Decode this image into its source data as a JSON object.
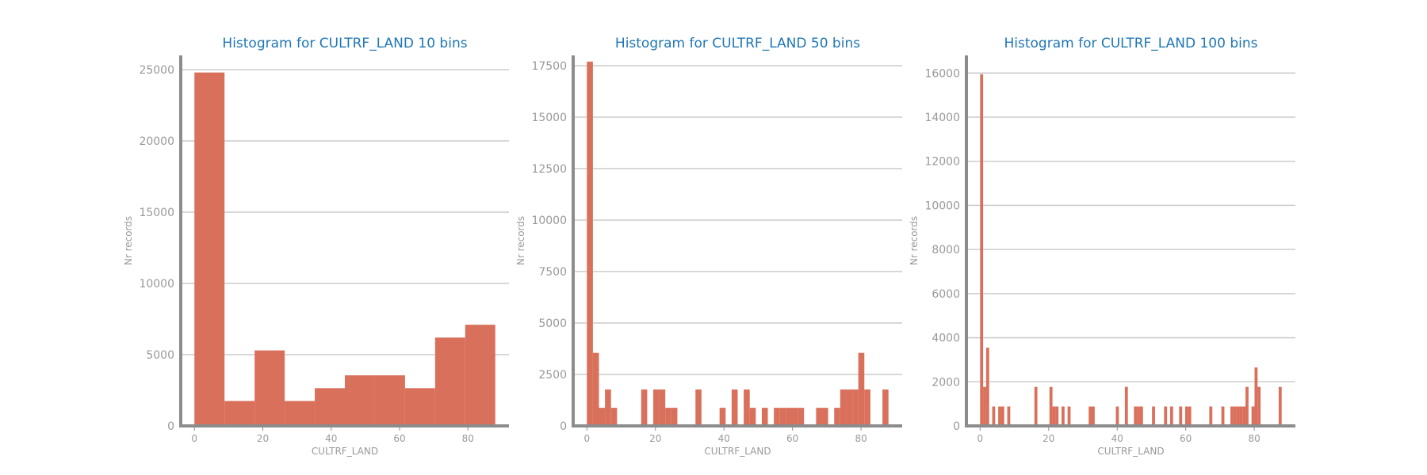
{
  "chart_data": [
    {
      "type": "bar",
      "title": "Histogram for CULTRF_LAND 10 bins",
      "xlabel": "CULTRF_LAND",
      "ylabel": "Nr records",
      "bins": 10,
      "x_range": [
        0,
        88
      ],
      "xlim": [
        -4,
        92
      ],
      "ylim": [
        0,
        26000
      ],
      "xticks": [
        0,
        20,
        40,
        60,
        80
      ],
      "yticks": [
        0,
        5000,
        10000,
        15000,
        20000,
        25000
      ],
      "bar_color": "#d9705c",
      "values": [
        24800,
        1750,
        5300,
        1750,
        2650,
        3550,
        3550,
        2650,
        6200,
        7100
      ]
    },
    {
      "type": "bar",
      "title": "Histogram for CULTRF_LAND 50 bins",
      "xlabel": "CULTRF_LAND",
      "ylabel": "Nr records",
      "bins": 50,
      "x_range": [
        0,
        88
      ],
      "xlim": [
        -4,
        92
      ],
      "ylim": [
        0,
        18000
      ],
      "xticks": [
        0,
        20,
        40,
        60,
        80
      ],
      "yticks": [
        0,
        2500,
        5000,
        7500,
        10000,
        12500,
        15000,
        17500
      ],
      "bar_color": "#d9705c",
      "values": [
        17700,
        3550,
        880,
        1770,
        880,
        0,
        0,
        0,
        0,
        1770,
        0,
        1770,
        1770,
        880,
        880,
        0,
        0,
        0,
        1770,
        0,
        0,
        0,
        880,
        0,
        1770,
        0,
        1770,
        880,
        0,
        880,
        0,
        880,
        880,
        880,
        880,
        880,
        0,
        0,
        880,
        880,
        0,
        880,
        1770,
        1770,
        1770,
        3550,
        1770,
        0,
        0,
        1770
      ]
    },
    {
      "type": "bar",
      "title": "Histogram for CULTRF_LAND 100 bins",
      "xlabel": "CULTRF_LAND",
      "ylabel": "Nr records",
      "bins": 100,
      "x_range": [
        0,
        88
      ],
      "xlim": [
        -4,
        92
      ],
      "ylim": [
        0,
        16800
      ],
      "xticks": [
        0,
        20,
        40,
        60,
        80
      ],
      "yticks": [
        0,
        2000,
        4000,
        6000,
        8000,
        10000,
        12000,
        14000,
        16000
      ],
      "bar_color": "#d9705c",
      "values": [
        15950,
        1770,
        3550,
        0,
        880,
        0,
        880,
        880,
        0,
        880,
        0,
        0,
        0,
        0,
        0,
        0,
        0,
        0,
        1770,
        0,
        0,
        0,
        0,
        1770,
        880,
        880,
        0,
        880,
        0,
        880,
        0,
        0,
        0,
        0,
        0,
        0,
        880,
        880,
        0,
        0,
        0,
        0,
        0,
        0,
        0,
        880,
        0,
        0,
        1770,
        0,
        0,
        880,
        880,
        880,
        0,
        0,
        0,
        880,
        0,
        0,
        0,
        880,
        0,
        880,
        0,
        0,
        880,
        0,
        880,
        880,
        0,
        0,
        0,
        0,
        0,
        0,
        880,
        0,
        0,
        0,
        880,
        0,
        0,
        880,
        880,
        880,
        880,
        880,
        1770,
        0,
        880,
        2650,
        1770,
        0,
        0,
        0,
        0,
        0,
        0,
        1770
      ]
    }
  ]
}
